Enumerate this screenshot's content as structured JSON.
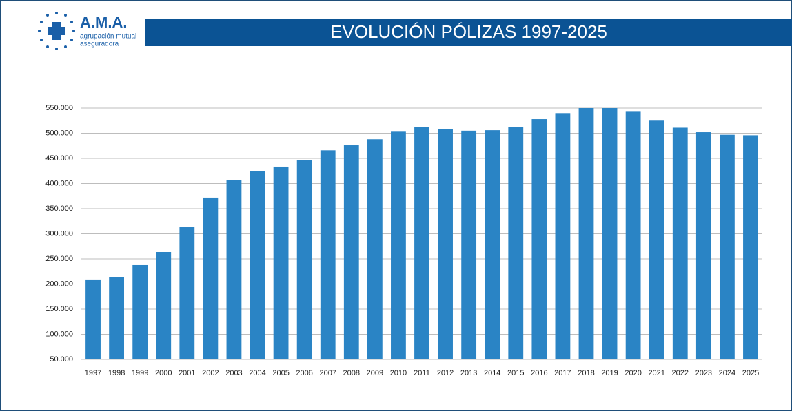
{
  "logo": {
    "name": "A.M.A.",
    "tagline": [
      "agrupación mutual",
      "aseguradora"
    ]
  },
  "chart_data": {
    "type": "bar",
    "title": "EVOLUCIÓN PÓLIZAS 1997-2025",
    "categories": [
      "1997",
      "1998",
      "1999",
      "2000",
      "2001",
      "2002",
      "2003",
      "2004",
      "2005",
      "2006",
      "2007",
      "2008",
      "2009",
      "2010",
      "2011",
      "2012",
      "2013",
      "2014",
      "2015",
      "2016",
      "2017",
      "2018",
      "2019",
      "2020",
      "2021",
      "2022",
      "2023",
      "2024",
      "2025"
    ],
    "values": [
      209000,
      214000,
      237700,
      263700,
      313000,
      372000,
      407500,
      425000,
      433600,
      447000,
      466000,
      476000,
      488000,
      503000,
      512000,
      508000,
      505000,
      506000,
      513000,
      528000,
      540000,
      550000,
      550000,
      544000,
      525000,
      511000,
      502000,
      497000,
      496000
    ],
    "color": "#2a84c5",
    "ylim": [
      50000,
      550000
    ],
    "yticks": [
      {
        "value": 50000,
        "label": "50.000"
      },
      {
        "value": 100000,
        "label": "100.000"
      },
      {
        "value": 150000,
        "label": "150.000"
      },
      {
        "value": 200000,
        "label": "200.000"
      },
      {
        "value": 250000,
        "label": "250.000"
      },
      {
        "value": 300000,
        "label": "300.000"
      },
      {
        "value": 350000,
        "label": "350.000"
      },
      {
        "value": 400000,
        "label": "400.000"
      },
      {
        "value": 450000,
        "label": "450.000"
      },
      {
        "value": 500000,
        "label": "500.000"
      },
      {
        "value": 550000,
        "label": "550.000"
      }
    ],
    "grid": true
  }
}
